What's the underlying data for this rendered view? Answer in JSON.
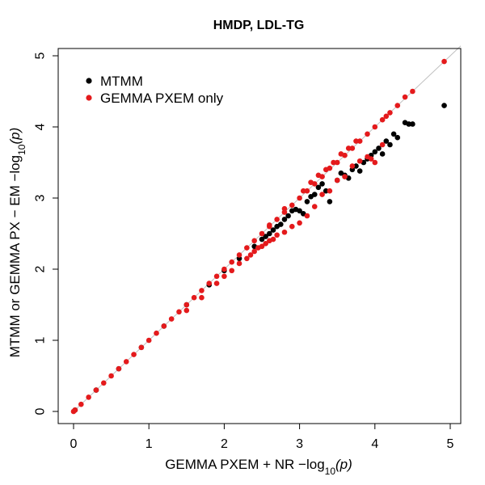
{
  "chart_data": {
    "type": "scatter",
    "title": "HMDP, LDL-TG",
    "xlabel": {
      "prefix": "GEMMA PXEM + NR  −log",
      "sub": "10",
      "suffix": "(p)"
    },
    "ylabel": {
      "prefix": "MTMM or GEMMA PX − EM  −log",
      "sub": "10",
      "suffix": "(p)"
    },
    "xlim": [
      0,
      5
    ],
    "ylim": [
      0,
      5
    ],
    "xticks": [
      "0",
      "1",
      "2",
      "3",
      "4",
      "5"
    ],
    "yticks": [
      "0",
      "1",
      "2",
      "3",
      "4",
      "5"
    ],
    "grid": false,
    "reference_line": "y = x",
    "legend": {
      "placement": "top-left",
      "entries": [
        {
          "label": "MTMM",
          "color": "#000000"
        },
        {
          "label": "GEMMA PXEM only",
          "color": "#e41a1c"
        }
      ]
    },
    "series": [
      {
        "name": "MTMM",
        "color": "#000000",
        "points": [
          [
            0.02,
            0.02
          ],
          [
            0.3,
            0.3
          ],
          [
            0.6,
            0.6
          ],
          [
            0.9,
            0.9
          ],
          [
            1.2,
            1.2
          ],
          [
            1.5,
            1.5
          ],
          [
            1.8,
            1.78
          ],
          [
            2.0,
            1.98
          ],
          [
            2.2,
            2.15
          ],
          [
            2.4,
            2.32
          ],
          [
            2.5,
            2.42
          ],
          [
            2.55,
            2.46
          ],
          [
            2.6,
            2.5
          ],
          [
            2.65,
            2.55
          ],
          [
            2.7,
            2.6
          ],
          [
            2.75,
            2.63
          ],
          [
            2.8,
            2.7
          ],
          [
            2.85,
            2.75
          ],
          [
            2.9,
            2.82
          ],
          [
            2.95,
            2.84
          ],
          [
            3.0,
            2.82
          ],
          [
            3.05,
            2.78
          ],
          [
            3.1,
            2.95
          ],
          [
            3.15,
            3.02
          ],
          [
            3.2,
            3.05
          ],
          [
            3.25,
            3.15
          ],
          [
            3.3,
            3.2
          ],
          [
            3.35,
            3.1
          ],
          [
            3.4,
            2.95
          ],
          [
            3.5,
            3.25
          ],
          [
            3.55,
            3.35
          ],
          [
            3.6,
            3.32
          ],
          [
            3.65,
            3.28
          ],
          [
            3.7,
            3.4
          ],
          [
            3.75,
            3.45
          ],
          [
            3.8,
            3.38
          ],
          [
            3.85,
            3.5
          ],
          [
            3.9,
            3.55
          ],
          [
            3.95,
            3.6
          ],
          [
            4.0,
            3.65
          ],
          [
            4.05,
            3.7
          ],
          [
            4.1,
            3.62
          ],
          [
            4.15,
            3.8
          ],
          [
            4.2,
            3.75
          ],
          [
            4.25,
            3.9
          ],
          [
            4.3,
            3.85
          ],
          [
            4.4,
            4.06
          ],
          [
            4.45,
            4.04
          ],
          [
            4.5,
            4.04
          ],
          [
            4.92,
            4.3
          ]
        ]
      },
      {
        "name": "GEMMA PXEM only",
        "color": "#e41a1c",
        "points": [
          [
            0.0,
            0.0
          ],
          [
            0.02,
            0.02
          ],
          [
            0.1,
            0.1
          ],
          [
            0.2,
            0.2
          ],
          [
            0.3,
            0.3
          ],
          [
            0.4,
            0.4
          ],
          [
            0.5,
            0.5
          ],
          [
            0.6,
            0.6
          ],
          [
            0.7,
            0.7
          ],
          [
            0.8,
            0.8
          ],
          [
            0.9,
            0.9
          ],
          [
            1.0,
            1.0
          ],
          [
            1.1,
            1.1
          ],
          [
            1.2,
            1.2
          ],
          [
            1.3,
            1.3
          ],
          [
            1.4,
            1.4
          ],
          [
            1.5,
            1.5
          ],
          [
            1.6,
            1.6
          ],
          [
            1.7,
            1.7
          ],
          [
            1.8,
            1.8
          ],
          [
            1.9,
            1.9
          ],
          [
            2.0,
            2.0
          ],
          [
            2.1,
            2.1
          ],
          [
            2.2,
            2.2
          ],
          [
            2.3,
            2.3
          ],
          [
            2.4,
            2.4
          ],
          [
            2.5,
            2.5
          ],
          [
            2.6,
            2.6
          ],
          [
            2.7,
            2.7
          ],
          [
            2.8,
            2.8
          ],
          [
            2.9,
            2.9
          ],
          [
            3.0,
            3.0
          ],
          [
            3.1,
            3.1
          ],
          [
            3.2,
            3.2
          ],
          [
            3.3,
            3.3
          ],
          [
            3.4,
            3.42
          ],
          [
            3.5,
            3.5
          ],
          [
            3.6,
            3.6
          ],
          [
            3.7,
            3.7
          ],
          [
            3.8,
            3.8
          ],
          [
            3.9,
            3.9
          ],
          [
            4.0,
            4.0
          ],
          [
            4.1,
            4.1
          ],
          [
            4.15,
            4.15
          ],
          [
            4.2,
            4.2
          ],
          [
            4.3,
            4.3
          ],
          [
            4.4,
            4.42
          ],
          [
            4.5,
            4.5
          ],
          [
            4.92,
            4.92
          ],
          [
            1.5,
            1.42
          ],
          [
            1.7,
            1.6
          ],
          [
            1.9,
            1.8
          ],
          [
            2.0,
            1.9
          ],
          [
            2.1,
            1.98
          ],
          [
            2.2,
            2.08
          ],
          [
            2.3,
            2.15
          ],
          [
            2.35,
            2.2
          ],
          [
            2.4,
            2.25
          ],
          [
            2.45,
            2.3
          ],
          [
            2.5,
            2.32
          ],
          [
            2.55,
            2.36
          ],
          [
            2.6,
            2.4
          ],
          [
            2.65,
            2.42
          ],
          [
            2.7,
            2.48
          ],
          [
            2.8,
            2.52
          ],
          [
            2.9,
            2.6
          ],
          [
            3.0,
            2.65
          ],
          [
            3.1,
            2.75
          ],
          [
            3.2,
            2.88
          ],
          [
            3.3,
            3.05
          ],
          [
            3.4,
            3.1
          ],
          [
            3.5,
            3.25
          ],
          [
            3.6,
            3.3
          ],
          [
            3.7,
            3.45
          ],
          [
            3.8,
            3.52
          ],
          [
            3.9,
            3.58
          ],
          [
            3.95,
            3.55
          ],
          [
            4.0,
            3.5
          ],
          [
            4.1,
            3.75
          ],
          [
            2.6,
            2.62
          ],
          [
            2.8,
            2.85
          ],
          [
            3.05,
            3.1
          ],
          [
            3.15,
            3.22
          ],
          [
            3.25,
            3.32
          ],
          [
            3.35,
            3.4
          ],
          [
            3.45,
            3.5
          ],
          [
            3.55,
            3.62
          ],
          [
            3.65,
            3.7
          ],
          [
            3.75,
            3.8
          ]
        ]
      }
    ]
  }
}
